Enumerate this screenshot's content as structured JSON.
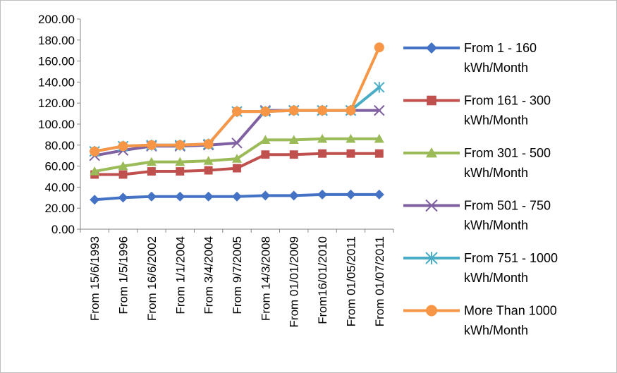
{
  "chart_data": {
    "type": "line",
    "categories": [
      "From 15/6/1993",
      "From 1/5/1996",
      "From 16/6/2002",
      "From 1/1/2004",
      "From  3/4/2004",
      "From  9/7/2005",
      "From  14/3/2008",
      "From 01/01/2009",
      "From16/01/2010",
      "From 01/05/2011",
      "From 01/07/2011"
    ],
    "ylim": [
      0,
      200
    ],
    "yticks": [
      "0.00",
      "20.00",
      "40.00",
      "60.00",
      "80.00",
      "100.00",
      "120.00",
      "140.00",
      "160.00",
      "180.00",
      "200.00"
    ],
    "legend_position": "right",
    "series": [
      {
        "name": "From   1  - 160 kWh/Month",
        "color": "#4472c4",
        "marker": "diamond",
        "values": [
          28,
          30,
          31,
          31,
          31,
          31,
          32,
          32,
          33,
          33,
          33
        ]
      },
      {
        "name": " From   161 - 300 kWh/Month",
        "color": "#c0504d",
        "marker": "square",
        "values": [
          52,
          52,
          55,
          55,
          56,
          58,
          71,
          71,
          72,
          72,
          72
        ]
      },
      {
        "name": "From   301 - 500 kWh/Month",
        "color": "#9bbb59",
        "marker": "triangle",
        "values": [
          55,
          60,
          64,
          64,
          65,
          67,
          85,
          85,
          86,
          86,
          86
        ]
      },
      {
        "name": "From   501 - 750 kWh/Month",
        "color": "#7f60a0",
        "marker": "x",
        "values": [
          70,
          75,
          79,
          79,
          80,
          82,
          113,
          113,
          113,
          113,
          113
        ]
      },
      {
        "name": "From   751 - 1000 kWh/Month",
        "color": "#4bacc6",
        "marker": "star",
        "values": [
          74,
          79,
          80,
          80,
          81,
          112,
          112,
          113,
          113,
          113,
          135
        ]
      },
      {
        "name": "More Than  1000 kWh/Month",
        "color": "#f79646",
        "marker": "circle",
        "values": [
          74,
          79,
          80,
          80,
          81,
          112,
          112,
          113,
          113,
          113,
          173
        ]
      }
    ]
  }
}
